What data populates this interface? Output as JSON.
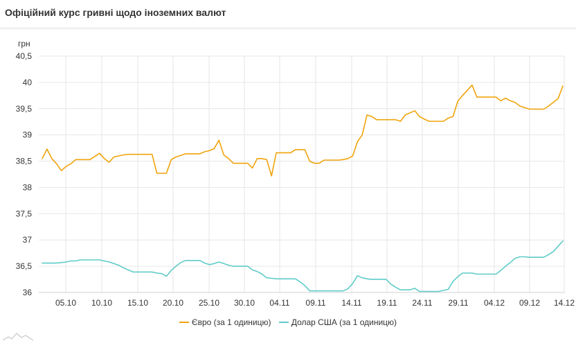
{
  "header": {
    "title": "Офіційний курс гривні щодо іноземних валют"
  },
  "chart_data": {
    "type": "line",
    "ylabel": "грн",
    "ylim": [
      36,
      40.5
    ],
    "yticks": [
      "40,5",
      "40",
      "39,5",
      "39",
      "38,5",
      "38",
      "37,5",
      "37",
      "36,5",
      "36"
    ],
    "ytick_values": [
      40.5,
      40,
      39.5,
      39,
      38.5,
      38,
      37.5,
      37,
      36.5,
      36
    ],
    "xticks": [
      "05.10",
      "10.10",
      "15.10",
      "20.10",
      "25.10",
      "30.10",
      "04.11",
      "09.11",
      "14.11",
      "19.11",
      "24.11",
      "29.11",
      "04.12",
      "09.12",
      "14.12"
    ],
    "x_start": "01.10",
    "x_end": "14.12",
    "grid": true,
    "legend_position": "bottom",
    "series": [
      {
        "name": "Євро (за 1 одиницю)",
        "color": "#f0a30a",
        "values": [
          38.55,
          38.73,
          38.55,
          38.45,
          38.32,
          38.4,
          38.45,
          38.53,
          38.53,
          38.53,
          38.53,
          38.59,
          38.65,
          38.55,
          38.48,
          38.58,
          38.6,
          38.62,
          38.63,
          38.63,
          38.63,
          38.63,
          38.63,
          38.63,
          38.27,
          38.27,
          38.27,
          38.53,
          38.58,
          38.61,
          38.64,
          38.64,
          38.64,
          38.64,
          38.68,
          38.7,
          38.74,
          38.9,
          38.62,
          38.55,
          38.46,
          38.46,
          38.46,
          38.46,
          38.37,
          38.55,
          38.55,
          38.53,
          38.22,
          38.66,
          38.66,
          38.66,
          38.66,
          38.72,
          38.72,
          38.72,
          38.5,
          38.46,
          38.46,
          38.52,
          38.52,
          38.52,
          38.52,
          38.53,
          38.55,
          38.6,
          38.87,
          39.0,
          39.38,
          39.35,
          39.29,
          39.29,
          39.29,
          39.29,
          39.29,
          39.26,
          39.38,
          39.42,
          39.46,
          39.35,
          39.3,
          39.26,
          39.26,
          39.26,
          39.26,
          39.32,
          39.35,
          39.64,
          39.75,
          39.85,
          39.95,
          39.72,
          39.72,
          39.72,
          39.72,
          39.72,
          39.65,
          39.7,
          39.65,
          39.62,
          39.55,
          39.52,
          39.49,
          39.49,
          39.49,
          39.49,
          39.55,
          39.62,
          39.69,
          39.93
        ]
      },
      {
        "name": "Долар США (за 1 одиницю)",
        "color": "#5ecbc8",
        "values": [
          36.56,
          36.56,
          36.56,
          36.56,
          36.57,
          36.58,
          36.6,
          36.6,
          36.62,
          36.62,
          36.62,
          36.62,
          36.62,
          36.6,
          36.58,
          36.55,
          36.52,
          36.47,
          36.43,
          36.39,
          36.39,
          36.39,
          36.39,
          36.39,
          36.37,
          36.36,
          36.31,
          36.42,
          36.5,
          36.57,
          36.61,
          36.61,
          36.61,
          36.61,
          36.56,
          36.53,
          36.55,
          36.58,
          36.55,
          36.52,
          36.5,
          36.5,
          36.5,
          36.5,
          36.43,
          36.4,
          36.35,
          36.28,
          36.27,
          36.26,
          36.26,
          36.26,
          36.26,
          36.26,
          36.2,
          36.13,
          36.03,
          36.03,
          36.03,
          36.03,
          36.03,
          36.03,
          36.03,
          36.03,
          36.07,
          36.17,
          36.32,
          36.28,
          36.26,
          36.25,
          36.25,
          36.25,
          36.25,
          36.16,
          36.1,
          36.05,
          36.05,
          36.05,
          36.08,
          36.02,
          36.02,
          36.02,
          36.02,
          36.02,
          36.04,
          36.06,
          36.21,
          36.3,
          36.37,
          36.37,
          36.37,
          36.35,
          36.35,
          36.35,
          36.35,
          36.35,
          36.42,
          36.5,
          36.57,
          36.65,
          36.68,
          36.68,
          36.67,
          36.67,
          36.67,
          36.67,
          36.72,
          36.78,
          36.88,
          36.98
        ]
      }
    ]
  }
}
